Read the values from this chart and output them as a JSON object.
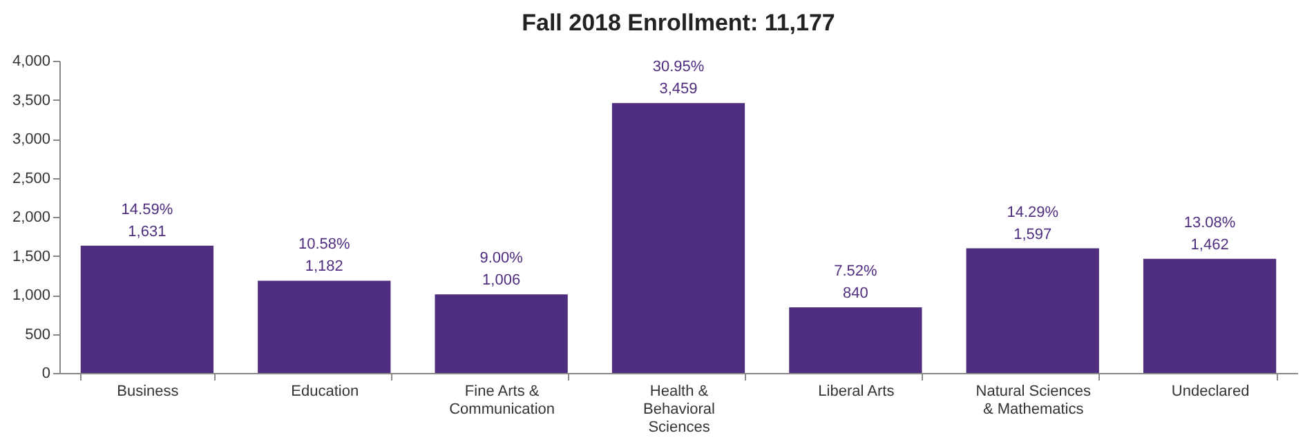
{
  "chart_data": {
    "type": "bar",
    "title": "Fall 2018 Enrollment:  11,177",
    "categories": [
      "Business",
      "Education",
      "Fine Arts & Communication",
      "Health & Behavioral Sciences",
      "Liberal Arts",
      "Natural Sciences & Mathematics",
      "Undeclared"
    ],
    "values": [
      1631,
      1182,
      1006,
      3459,
      840,
      1597,
      1462
    ],
    "value_labels": [
      "14.59%\n1,631",
      "10.58%\n1,182",
      "9.00%\n1,006",
      "30.95%\n3,459",
      "7.52%\n840",
      "14.29%\n1,597",
      "13.08%\n1,462"
    ],
    "color": "#4f2d7f",
    "ylim": [
      0,
      4000
    ],
    "yticks": [
      0,
      500,
      {
        "value": 1000,
        "label": "1,000"
      },
      {
        "value": 1500,
        "label": "1,500"
      },
      {
        "value": 2000,
        "label": "2,000"
      },
      {
        "value": 2500,
        "label": "2,500"
      },
      {
        "value": 3000,
        "label": "3,000"
      },
      {
        "value": 3500,
        "label": "3,500"
      },
      {
        "value": 4000,
        "label": "4,000"
      }
    ],
    "grid": false
  }
}
